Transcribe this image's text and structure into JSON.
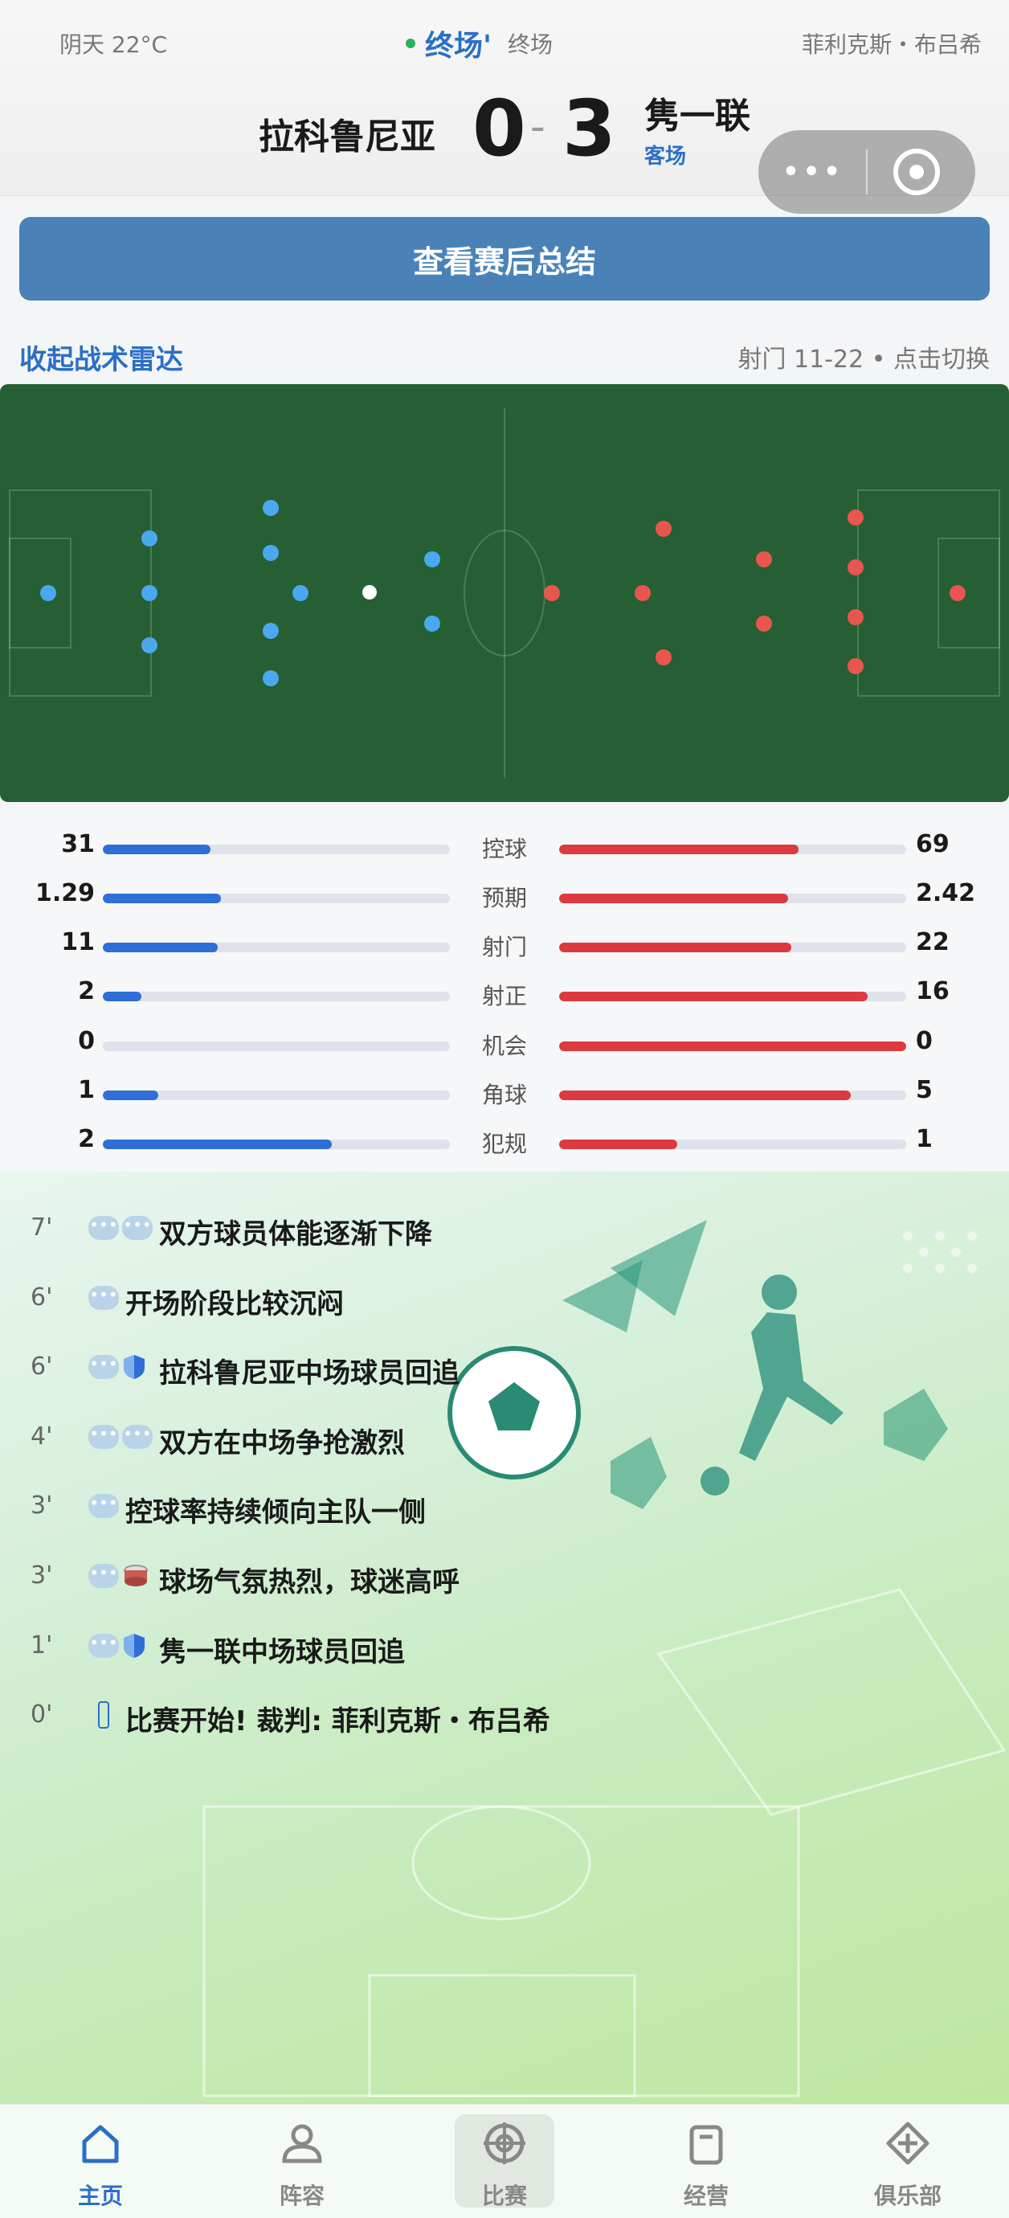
{
  "header": {
    "weather": "阴天 22°C",
    "status_main": "终场'",
    "status_sub": "终场",
    "referee": "菲利克斯・布吕希",
    "home_team": "拉科鲁尼亚",
    "away_team": "隽一联",
    "home_score": "0",
    "score_separator": "-",
    "away_score": "3",
    "away_tag": "客场",
    "capsule_more": "•••"
  },
  "summary_button": "查看赛后总结",
  "radar": {
    "toggle_label": "收起战术雷达",
    "info": "射门 11-22 • 点击切换"
  },
  "colors": {
    "home": "#2f6ed6",
    "away": "#dc3a3e",
    "accent": "#2b6fc7",
    "pitch": "#265f33"
  },
  "stats": [
    {
      "label": "控球",
      "home": "31",
      "away": "69",
      "home_pct": 0.31,
      "away_pct": 0.69
    },
    {
      "label": "预期",
      "home": "1.29",
      "away": "2.42",
      "home_pct": 0.34,
      "away_pct": 0.66
    },
    {
      "label": "射门",
      "home": "11",
      "away": "22",
      "home_pct": 0.33,
      "away_pct": 0.67
    },
    {
      "label": "射正",
      "home": "2",
      "away": "16",
      "home_pct": 0.11,
      "away_pct": 0.89
    },
    {
      "label": "机会",
      "home": "0",
      "away": "0",
      "home_pct": 0.0,
      "away_pct": 1.0
    },
    {
      "label": "角球",
      "home": "1",
      "away": "5",
      "home_pct": 0.16,
      "away_pct": 0.84
    },
    {
      "label": "犯规",
      "home": "2",
      "away": "1",
      "home_pct": 0.66,
      "away_pct": 0.34
    }
  ],
  "events": [
    {
      "minute": "7'",
      "icons": [
        "bubble",
        "bubble"
      ],
      "text": "双方球员体能逐渐下降"
    },
    {
      "minute": "6'",
      "icons": [
        "bubble"
      ],
      "text": "开场阶段比较沉闷"
    },
    {
      "minute": "6'",
      "icons": [
        "bubble",
        "shield"
      ],
      "text": "拉科鲁尼亚中场球员回追"
    },
    {
      "minute": "4'",
      "icons": [
        "bubble",
        "bubble"
      ],
      "text": "双方在中场争抢激烈"
    },
    {
      "minute": "3'",
      "icons": [
        "bubble"
      ],
      "text": "控球率持续倾向主队一侧"
    },
    {
      "minute": "3'",
      "icons": [
        "bubble",
        "drum"
      ],
      "text": "球场气氛热烈，球迷高呼"
    },
    {
      "minute": "1'",
      "icons": [
        "bubble",
        "shield"
      ],
      "text": "隽一联中场球员回追"
    },
    {
      "minute": "0'",
      "icons": [
        "whistle"
      ],
      "text": "比赛开始! 裁判: 菲利克斯・布吕希"
    }
  ],
  "nav": [
    {
      "label": "主页",
      "icon": "home-icon"
    },
    {
      "label": "阵容",
      "icon": "person-icon"
    },
    {
      "label": "比赛",
      "icon": "target-icon"
    },
    {
      "label": "经营",
      "icon": "clipboard-icon"
    },
    {
      "label": "俱乐部",
      "icon": "club-icon"
    }
  ]
}
